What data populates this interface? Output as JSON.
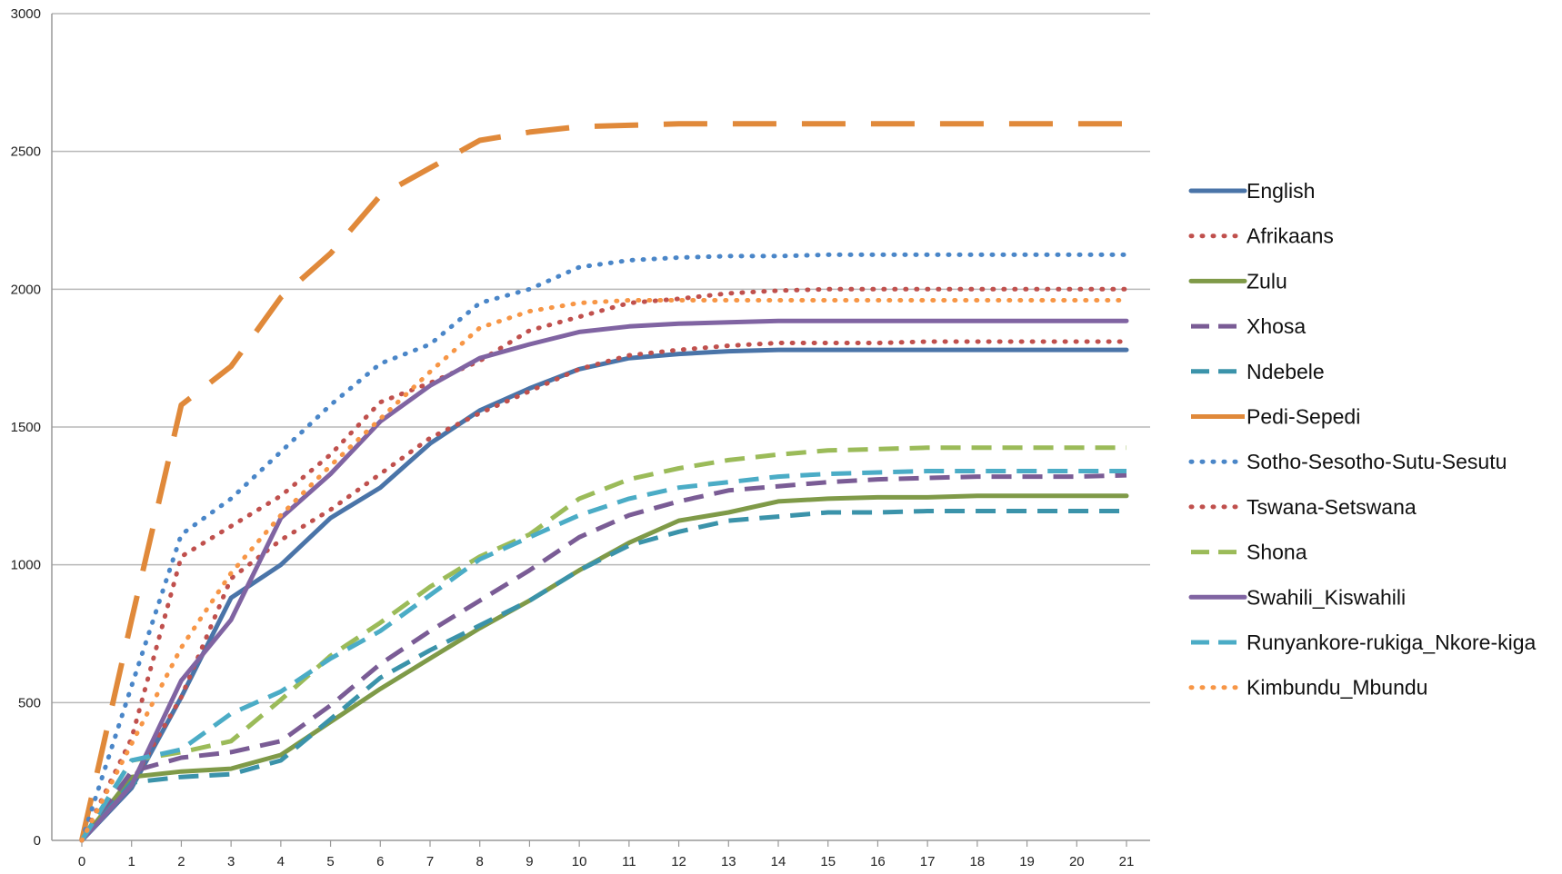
{
  "chart_data": {
    "type": "line",
    "title": "",
    "xlabel": "",
    "ylabel": "",
    "x": [
      0,
      1,
      2,
      3,
      4,
      5,
      6,
      7,
      8,
      9,
      10,
      11,
      12,
      13,
      14,
      15,
      16,
      17,
      18,
      19,
      20,
      21
    ],
    "xlim": [
      0,
      21
    ],
    "ylim": [
      0,
      3000
    ],
    "yticks": [
      0,
      500,
      1000,
      1500,
      2000,
      2500,
      3000
    ],
    "grid": "horizontal",
    "legend_position": "right",
    "series": [
      {
        "name": "English",
        "color": "#4a74a8",
        "style": "solid",
        "values": [
          0,
          190,
          520,
          880,
          1000,
          1170,
          1280,
          1440,
          1560,
          1640,
          1710,
          1750,
          1765,
          1775,
          1780,
          1780,
          1780,
          1780,
          1780,
          1780,
          1780,
          1780
        ]
      },
      {
        "name": "Afrikaans",
        "color": "#c0504d",
        "style": "dotted",
        "values": [
          0,
          210,
          520,
          950,
          1090,
          1200,
          1330,
          1460,
          1550,
          1630,
          1710,
          1760,
          1780,
          1795,
          1805,
          1805,
          1805,
          1810,
          1810,
          1810,
          1810,
          1810
        ]
      },
      {
        "name": "Zulu",
        "color": "#7f9a48",
        "style": "solid",
        "values": [
          0,
          230,
          250,
          260,
          310,
          430,
          550,
          660,
          770,
          870,
          980,
          1080,
          1160,
          1190,
          1230,
          1240,
          1245,
          1245,
          1250,
          1250,
          1250,
          1250
        ]
      },
      {
        "name": "Xhosa",
        "color": "#7a5c95",
        "style": "dashed",
        "values": [
          0,
          250,
          300,
          320,
          360,
          490,
          640,
          760,
          870,
          980,
          1100,
          1180,
          1230,
          1270,
          1285,
          1300,
          1310,
          1315,
          1320,
          1320,
          1320,
          1325
        ]
      },
      {
        "name": "Ndebele",
        "color": "#3b93aa",
        "style": "dashed",
        "values": [
          0,
          210,
          230,
          240,
          290,
          440,
          590,
          690,
          780,
          870,
          980,
          1070,
          1120,
          1160,
          1175,
          1190,
          1190,
          1195,
          1195,
          1195,
          1195,
          1195
        ]
      },
      {
        "name": "Pedi-Sepedi",
        "color": "#e0893a",
        "style": "longdash",
        "values": [
          0,
          800,
          1580,
          1720,
          1970,
          2130,
          2340,
          2440,
          2540,
          2570,
          2590,
          2595,
          2600,
          2600,
          2600,
          2600,
          2600,
          2600,
          2600,
          2600,
          2600,
          2600
        ]
      },
      {
        "name": "Sotho-Sesotho-Sutu-Sesutu",
        "color": "#4a86c8",
        "style": "dotted",
        "values": [
          0,
          560,
          1110,
          1240,
          1410,
          1580,
          1730,
          1800,
          1950,
          2000,
          2080,
          2105,
          2115,
          2120,
          2120,
          2125,
          2125,
          2125,
          2125,
          2125,
          2125,
          2125
        ]
      },
      {
        "name": "Tswana-Setswana",
        "color": "#c0504d",
        "style": "dotted",
        "values": [
          0,
          370,
          1030,
          1140,
          1250,
          1400,
          1590,
          1660,
          1740,
          1850,
          1900,
          1950,
          1965,
          1985,
          1995,
          2000,
          2000,
          2000,
          2000,
          2000,
          2000,
          2000
        ]
      },
      {
        "name": "Shona",
        "color": "#9bbb59",
        "style": "dashed",
        "values": [
          0,
          290,
          320,
          360,
          510,
          670,
          790,
          920,
          1030,
          1110,
          1240,
          1310,
          1350,
          1380,
          1400,
          1415,
          1420,
          1425,
          1425,
          1425,
          1425,
          1425
        ]
      },
      {
        "name": "Swahili_Kiswahili",
        "color": "#8064a2",
        "style": "solid",
        "values": [
          0,
          200,
          580,
          800,
          1170,
          1330,
          1520,
          1650,
          1750,
          1800,
          1845,
          1865,
          1875,
          1880,
          1885,
          1885,
          1885,
          1885,
          1885,
          1885,
          1885,
          1885
        ]
      },
      {
        "name": "Runyankore-rukiga_Nkore-kiga",
        "color": "#4bacc6",
        "style": "dashed",
        "values": [
          0,
          290,
          330,
          460,
          540,
          660,
          760,
          890,
          1020,
          1100,
          1180,
          1240,
          1280,
          1300,
          1320,
          1330,
          1335,
          1340,
          1340,
          1340,
          1340,
          1340
        ]
      },
      {
        "name": "Kimbundu_Mbundu",
        "color": "#f79646",
        "style": "dotted",
        "values": [
          0,
          350,
          700,
          970,
          1180,
          1360,
          1530,
          1700,
          1860,
          1920,
          1950,
          1960,
          1960,
          1960,
          1960,
          1960,
          1960,
          1960,
          1960,
          1960,
          1960,
          1960
        ]
      }
    ]
  }
}
